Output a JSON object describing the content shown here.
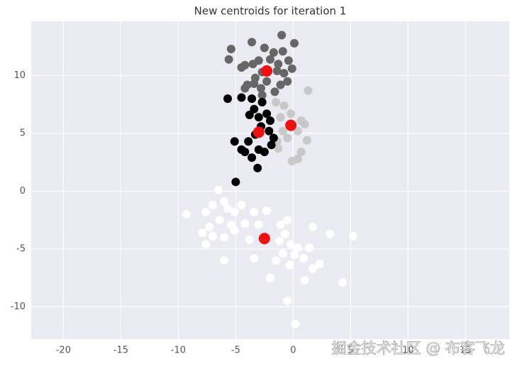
{
  "chart_data": {
    "type": "scatter",
    "title": "New centroids for iteration 1",
    "annotation": "掘金技术社区 @ 布客飞龙",
    "xlim": [
      -22.8,
      18.8
    ],
    "ylim": [
      -12.8,
      14.7
    ],
    "xticks": [
      -20,
      -15,
      -10,
      -5,
      0,
      5,
      10,
      15
    ],
    "yticks": [
      -10,
      -5,
      0,
      5,
      10
    ],
    "grid": true,
    "series": [
      {
        "color": "#666666",
        "x": [
          -1.0,
          0.1,
          -3.6,
          -5.6,
          -2.5,
          -1.7,
          -0.9,
          -0.4,
          -4.5,
          -4.2,
          -3.5,
          -2.7,
          -1.4,
          -0.8,
          -0.1,
          -3.0,
          -2.0,
          -1.3,
          -4.0,
          -3.4,
          -2.8,
          -1.6,
          -1.1,
          -0.5,
          -5.4,
          -3.3,
          -2.3,
          -4.2,
          -2.7
        ],
        "y": [
          13.5,
          12.8,
          12.9,
          11.4,
          12.4,
          12.0,
          12.1,
          11.3,
          10.7,
          10.9,
          11.0,
          10.3,
          10.4,
          10.2,
          10.6,
          11.3,
          11.4,
          11.0,
          9.2,
          9.3,
          8.9,
          8.6,
          9.2,
          9.5,
          12.3,
          9.8,
          9.5,
          8.9,
          8.3
        ]
      },
      {
        "color": "#c8c8c8",
        "x": [
          1.3,
          -0.8,
          -0.2,
          0.7,
          1.0,
          0.4,
          1.2,
          0.7,
          -0.1,
          -1.1,
          -1.4,
          -1.3,
          -0.5,
          0.4,
          -1.5,
          -0.9
        ],
        "y": [
          8.7,
          7.4,
          6.7,
          6.1,
          5.8,
          5.2,
          4.4,
          3.4,
          2.6,
          6.4,
          4.3,
          3.7,
          4.6,
          2.8,
          7.7,
          5.2
        ]
      },
      {
        "color": "#000000",
        "x": [
          -5.7,
          -4.5,
          -3.6,
          -2.7,
          -3.4,
          -3.8,
          -3.0,
          -2.3,
          -2.0,
          -2.8,
          -2.1,
          -3.3,
          -1.7,
          -3.9,
          -5.1,
          -4.2,
          -3.0,
          -2.5,
          -3.6,
          -4.5,
          -3.1,
          -5.0,
          -1.9
        ],
        "y": [
          8.0,
          8.1,
          8.0,
          7.7,
          7.1,
          6.6,
          6.4,
          6.7,
          6.1,
          5.6,
          5.2,
          4.9,
          4.6,
          4.3,
          4.3,
          3.4,
          3.6,
          3.4,
          2.9,
          3.6,
          2.0,
          0.8,
          4.0
        ]
      },
      {
        "color": "#ffffff",
        "x": [
          -6.5,
          -9.3,
          -7.6,
          -7.0,
          -6.0,
          -5.7,
          -5.1,
          -6.4,
          -7.3,
          -7.9,
          -7.0,
          -7.6,
          -6.0,
          -5.1,
          -4.2,
          -4.5,
          -3.4,
          -2.3,
          -3.0,
          -3.8,
          -1.1,
          -0.5,
          -0.7,
          -0.2,
          0.4,
          0.1,
          -0.9,
          -1.5,
          -0.3,
          0.9,
          1.7,
          2.3,
          1.4,
          1.7,
          3.2,
          5.2,
          4.3,
          1.0,
          -2.0,
          -3.4,
          -6.0,
          -0.5,
          0.2,
          -5.4,
          -1.2
        ],
        "y": [
          0.1,
          -2.0,
          -1.8,
          -1.2,
          -0.9,
          -1.5,
          -1.8,
          -2.5,
          -3.1,
          -3.6,
          -3.9,
          -4.6,
          -4.0,
          -3.4,
          -2.8,
          -1.2,
          -1.8,
          -1.7,
          -2.9,
          -4.2,
          -2.9,
          -2.5,
          -3.7,
          -4.6,
          -4.9,
          -5.5,
          -5.4,
          -6.0,
          -6.4,
          -5.8,
          -6.7,
          -6.3,
          -4.9,
          -3.1,
          -3.7,
          -3.9,
          -7.9,
          -7.7,
          -7.5,
          -5.8,
          -6.0,
          -9.5,
          -11.5,
          -2.9,
          -4.3
        ]
      },
      {
        "color": "#ee1111",
        "x": [
          -2.3,
          -0.2,
          -3.0,
          -2.5
        ],
        "y": [
          10.4,
          5.7,
          5.1,
          -4.1
        ]
      }
    ]
  }
}
